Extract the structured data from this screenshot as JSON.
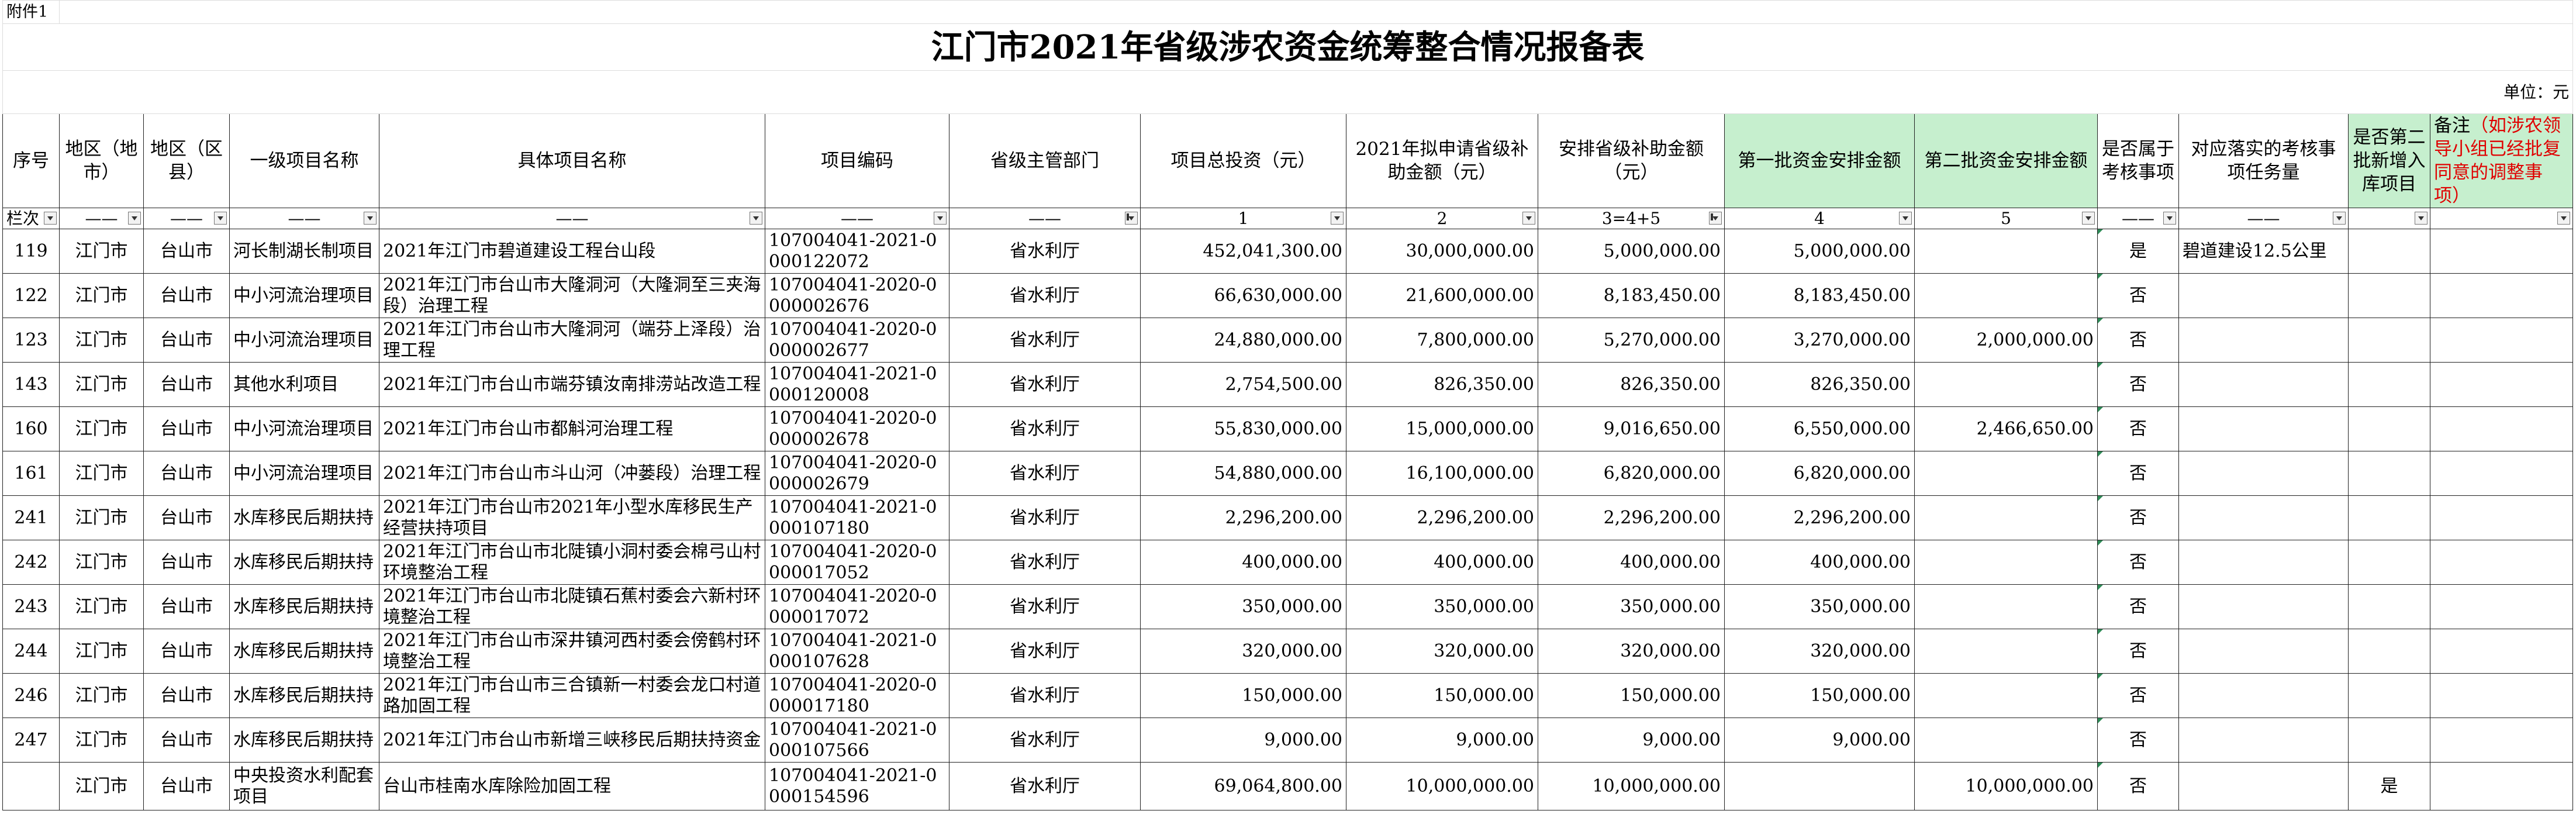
{
  "annex": "附件1",
  "title": "江门市2021年省级涉农资金统筹整合情况报备表",
  "unit": "单位：元",
  "headers": {
    "seq": "序号",
    "city": "地区（地市）",
    "county": "地区（区县）",
    "category": "一级项目名称",
    "project": "具体项目名称",
    "code": "项目编码",
    "dept": "省级主管部门",
    "total": "项目总投资（元）",
    "apply": "2021年拟申请省级补助金额（元）",
    "arrange": "安排省级补助金额（元）",
    "batch1": "第一批资金安排金额",
    "batch2": "第二批资金安排金额",
    "assess": "是否属于考核事项",
    "task": "对应落实的考核事项任务量",
    "newlib": "是否第二批新增入库项目",
    "remark_a": "备注",
    "remark_b": "（如涉农领导小组已经批复同意的调整事项）"
  },
  "lanmu": {
    "seq": "栏次",
    "dash": "——",
    "total": "1",
    "apply": "2",
    "arrange": "3=4+5",
    "batch1": "4",
    "batch2": "5"
  },
  "rows": [
    {
      "seq": "119",
      "city": "江门市",
      "county": "台山市",
      "category": "河长制湖长制项目",
      "project": "2021年江门市碧道建设工程台山段",
      "code": "107004041-2021-0000122072",
      "dept": "省水利厅",
      "total": "452,041,300.00",
      "apply": "30,000,000.00",
      "arrange": "5,000,000.00",
      "batch1": "5,000,000.00",
      "batch2": "",
      "assess": "是",
      "task": "碧道建设12.5公里",
      "newlib": "",
      "remark": ""
    },
    {
      "seq": "122",
      "city": "江门市",
      "county": "台山市",
      "category": "中小河流治理项目",
      "project": "2021年江门市台山市大隆洞河（大隆洞至三夹海段）治理工程",
      "code": "107004041-2020-0000002676",
      "dept": "省水利厅",
      "total": "66,630,000.00",
      "apply": "21,600,000.00",
      "arrange": "8,183,450.00",
      "batch1": "8,183,450.00",
      "batch2": "",
      "assess": "否",
      "task": "",
      "newlib": "",
      "remark": ""
    },
    {
      "seq": "123",
      "city": "江门市",
      "county": "台山市",
      "category": "中小河流治理项目",
      "project": "2021年江门市台山市大隆洞河（端芬上泽段）治理工程",
      "code": "107004041-2020-0000002677",
      "dept": "省水利厅",
      "total": "24,880,000.00",
      "apply": "7,800,000.00",
      "arrange": "5,270,000.00",
      "batch1": "3,270,000.00",
      "batch2": "2,000,000.00",
      "assess": "否",
      "task": "",
      "newlib": "",
      "remark": ""
    },
    {
      "seq": "143",
      "city": "江门市",
      "county": "台山市",
      "category": "其他水利项目",
      "project": "2021年江门市台山市端芬镇汝南排涝站改造工程",
      "code": "107004041-2021-0000120008",
      "dept": "省水利厅",
      "total": "2,754,500.00",
      "apply": "826,350.00",
      "arrange": "826,350.00",
      "batch1": "826,350.00",
      "batch2": "",
      "assess": "否",
      "task": "",
      "newlib": "",
      "remark": ""
    },
    {
      "seq": "160",
      "city": "江门市",
      "county": "台山市",
      "category": "中小河流治理项目",
      "project": "2021年江门市台山市都斛河治理工程",
      "code": "107004041-2020-0000002678",
      "dept": "省水利厅",
      "total": "55,830,000.00",
      "apply": "15,000,000.00",
      "arrange": "9,016,650.00",
      "batch1": "6,550,000.00",
      "batch2": "2,466,650.00",
      "assess": "否",
      "task": "",
      "newlib": "",
      "remark": ""
    },
    {
      "seq": "161",
      "city": "江门市",
      "county": "台山市",
      "category": "中小河流治理项目",
      "project": "2021年江门市台山市斗山河（冲蒌段）治理工程",
      "code": "107004041-2020-0000002679",
      "dept": "省水利厅",
      "total": "54,880,000.00",
      "apply": "16,100,000.00",
      "arrange": "6,820,000.00",
      "batch1": "6,820,000.00",
      "batch2": "",
      "assess": "否",
      "task": "",
      "newlib": "",
      "remark": ""
    },
    {
      "seq": "241",
      "city": "江门市",
      "county": "台山市",
      "category": "水库移民后期扶持",
      "project": "2021年江门市台山市2021年小型水库移民生产经营扶持项目",
      "code": "107004041-2021-0000107180",
      "dept": "省水利厅",
      "total": "2,296,200.00",
      "apply": "2,296,200.00",
      "arrange": "2,296,200.00",
      "batch1": "2,296,200.00",
      "batch2": "",
      "assess": "否",
      "task": "",
      "newlib": "",
      "remark": ""
    },
    {
      "seq": "242",
      "city": "江门市",
      "county": "台山市",
      "category": "水库移民后期扶持",
      "project": "2021年江门市台山市北陡镇小洞村委会棉弓山村环境整治工程",
      "code": "107004041-2020-0000017052",
      "dept": "省水利厅",
      "total": "400,000.00",
      "apply": "400,000.00",
      "arrange": "400,000.00",
      "batch1": "400,000.00",
      "batch2": "",
      "assess": "否",
      "task": "",
      "newlib": "",
      "remark": ""
    },
    {
      "seq": "243",
      "city": "江门市",
      "county": "台山市",
      "category": "水库移民后期扶持",
      "project": "2021年江门市台山市北陡镇石蕉村委会六新村环境整治工程",
      "code": "107004041-2020-0000017072",
      "dept": "省水利厅",
      "total": "350,000.00",
      "apply": "350,000.00",
      "arrange": "350,000.00",
      "batch1": "350,000.00",
      "batch2": "",
      "assess": "否",
      "task": "",
      "newlib": "",
      "remark": ""
    },
    {
      "seq": "244",
      "city": "江门市",
      "county": "台山市",
      "category": "水库移民后期扶持",
      "project": "2021年江门市台山市深井镇河西村委会傍鹤村环境整治工程",
      "code": "107004041-2021-0000107628",
      "dept": "省水利厅",
      "total": "320,000.00",
      "apply": "320,000.00",
      "arrange": "320,000.00",
      "batch1": "320,000.00",
      "batch2": "",
      "assess": "否",
      "task": "",
      "newlib": "",
      "remark": ""
    },
    {
      "seq": "246",
      "city": "江门市",
      "county": "台山市",
      "category": "水库移民后期扶持",
      "project": "2021年江门市台山市三合镇新一村委会龙口村道路加固工程",
      "code": "107004041-2020-0000017180",
      "dept": "省水利厅",
      "total": "150,000.00",
      "apply": "150,000.00",
      "arrange": "150,000.00",
      "batch1": "150,000.00",
      "batch2": "",
      "assess": "否",
      "task": "",
      "newlib": "",
      "remark": ""
    },
    {
      "seq": "247",
      "city": "江门市",
      "county": "台山市",
      "category": "水库移民后期扶持",
      "project": "2021年江门市台山市新增三峡移民后期扶持资金",
      "code": "107004041-2021-0000107566",
      "dept": "省水利厅",
      "total": "9,000.00",
      "apply": "9,000.00",
      "arrange": "9,000.00",
      "batch1": "9,000.00",
      "batch2": "",
      "assess": "否",
      "task": "",
      "newlib": "",
      "remark": ""
    },
    {
      "seq": "",
      "city": "江门市",
      "county": "台山市",
      "category": "中央投资水利配套项目",
      "project": "台山市桂南水库除险加固工程",
      "code": "107004041-2021-0000154596",
      "dept": "省水利厅",
      "total": "69,064,800.00",
      "apply": "10,000,000.00",
      "arrange": "10,000,000.00",
      "batch1": "",
      "batch2": "10,000,000.00",
      "assess": "否",
      "task": "",
      "newlib": "是",
      "remark": ""
    }
  ]
}
